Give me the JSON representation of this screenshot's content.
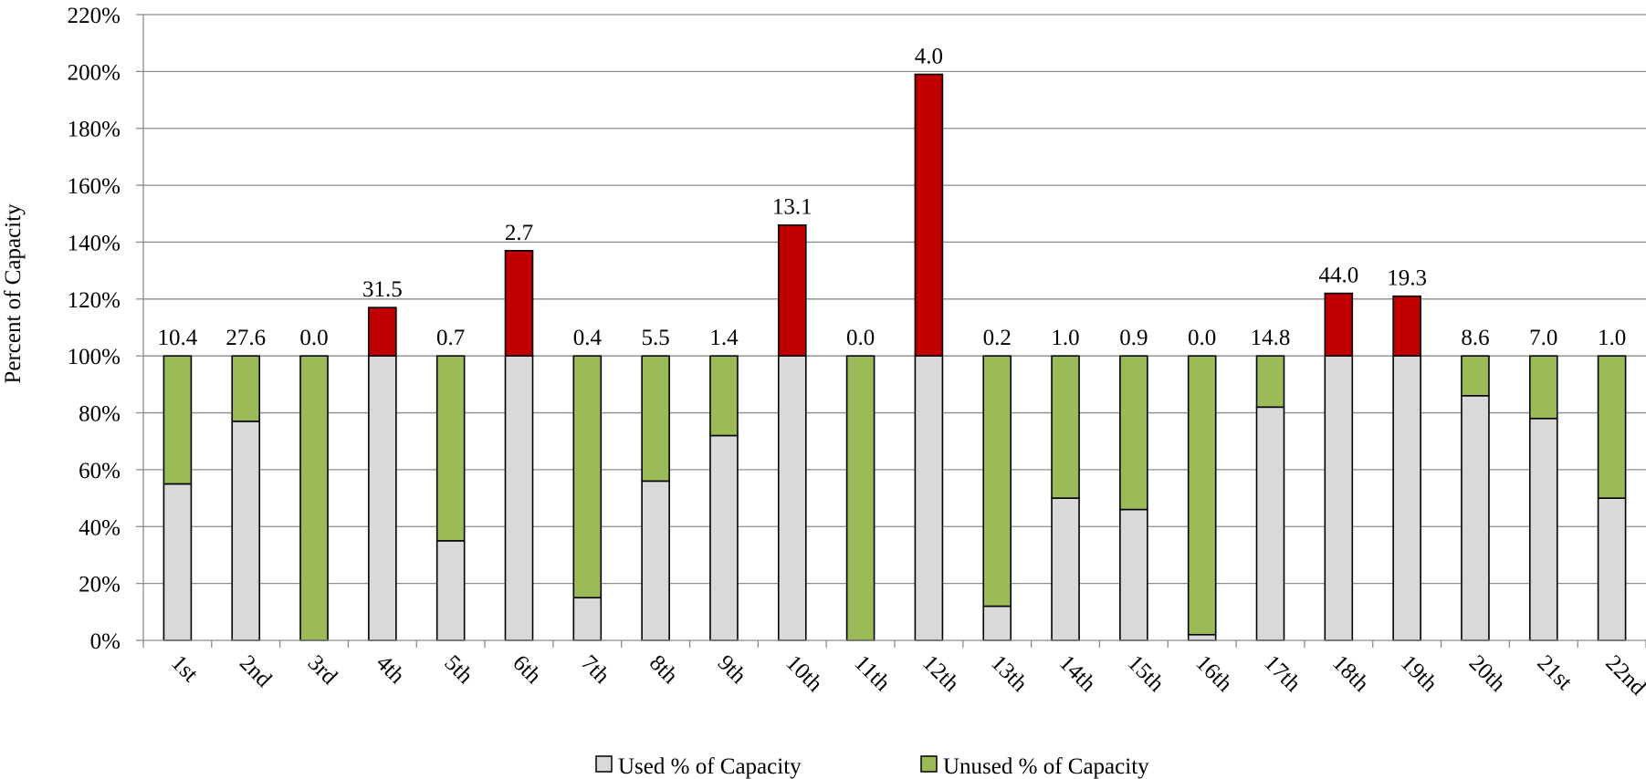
{
  "chart_data": {
    "type": "bar",
    "stacked": true,
    "categories": [
      "1st",
      "2nd",
      "3rd",
      "4th",
      "5th",
      "6th",
      "7th",
      "8th",
      "9th",
      "10th",
      "11th",
      "12th",
      "13th",
      "14th",
      "15th",
      "16th",
      "17th",
      "18th",
      "19th",
      "20th",
      "21st",
      "22nd"
    ],
    "series": [
      {
        "name": "Used % of Capacity",
        "color": "#d9d9d9",
        "values": [
          55,
          77,
          0,
          100,
          35,
          100,
          15,
          56,
          72,
          100,
          0,
          100,
          12,
          50,
          46,
          2,
          82,
          100,
          100,
          86,
          78,
          50
        ]
      },
      {
        "name": "Unused % of Capacity",
        "color": "#9bbb59",
        "values": [
          45,
          23,
          100,
          0,
          65,
          0,
          85,
          44,
          28,
          0,
          100,
          0,
          88,
          50,
          54,
          98,
          18,
          0,
          0,
          14,
          22,
          50
        ]
      },
      {
        "name": "",
        "color": "#c00000",
        "values": [
          0,
          0,
          0,
          17,
          0,
          37,
          0,
          0,
          0,
          46,
          0,
          99,
          0,
          0,
          0,
          0,
          0,
          22,
          21,
          0,
          0,
          0
        ]
      }
    ],
    "data_labels": [
      "10.4",
      "27.6",
      "0.0",
      "31.5",
      "0.7",
      "2.7",
      "0.4",
      "5.5",
      "1.4",
      "13.1",
      "0.0",
      "4.0",
      "0.2",
      "1.0",
      "0.9",
      "0.0",
      "14.8",
      "44.0",
      "19.3",
      "8.6",
      "7.0",
      "1.0"
    ],
    "ylabel": "Percent of Capacity",
    "ylim": [
      0,
      220
    ],
    "yticks": [
      0,
      20,
      40,
      60,
      80,
      100,
      120,
      140,
      160,
      180,
      200,
      220
    ],
    "ytick_labels": [
      "0%",
      "20%",
      "40%",
      "60%",
      "80%",
      "100%",
      "120%",
      "140%",
      "160%",
      "180%",
      "200%",
      "220%"
    ],
    "grid": true,
    "legend": "bottom"
  }
}
